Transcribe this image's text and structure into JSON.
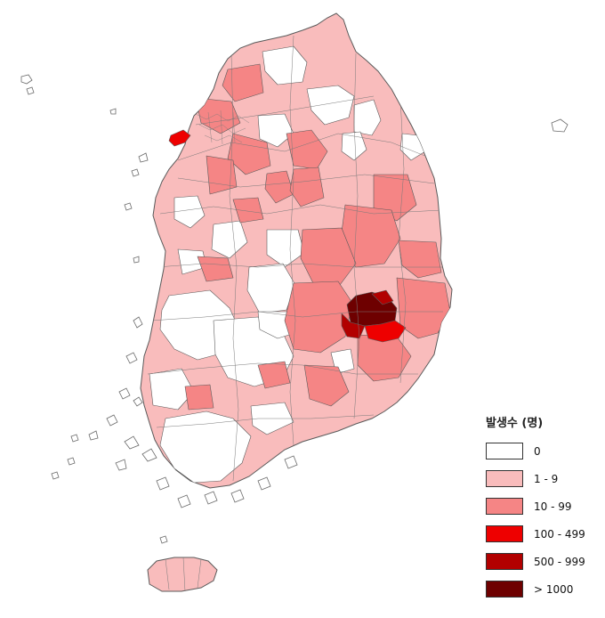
{
  "legend": {
    "title": "발생수 (명)",
    "classes": [
      {
        "label": "0",
        "color": "#ffffff"
      },
      {
        "label": "1 - 9",
        "color": "#f9bcbc"
      },
      {
        "label": "10 - 99",
        "color": "#f58585"
      },
      {
        "label": "100 - 499",
        "color": "#ee0000"
      },
      {
        "label": "500 - 999",
        "color": "#b20000"
      },
      {
        "label": "> 1000",
        "color": "#6e0000"
      }
    ]
  }
}
